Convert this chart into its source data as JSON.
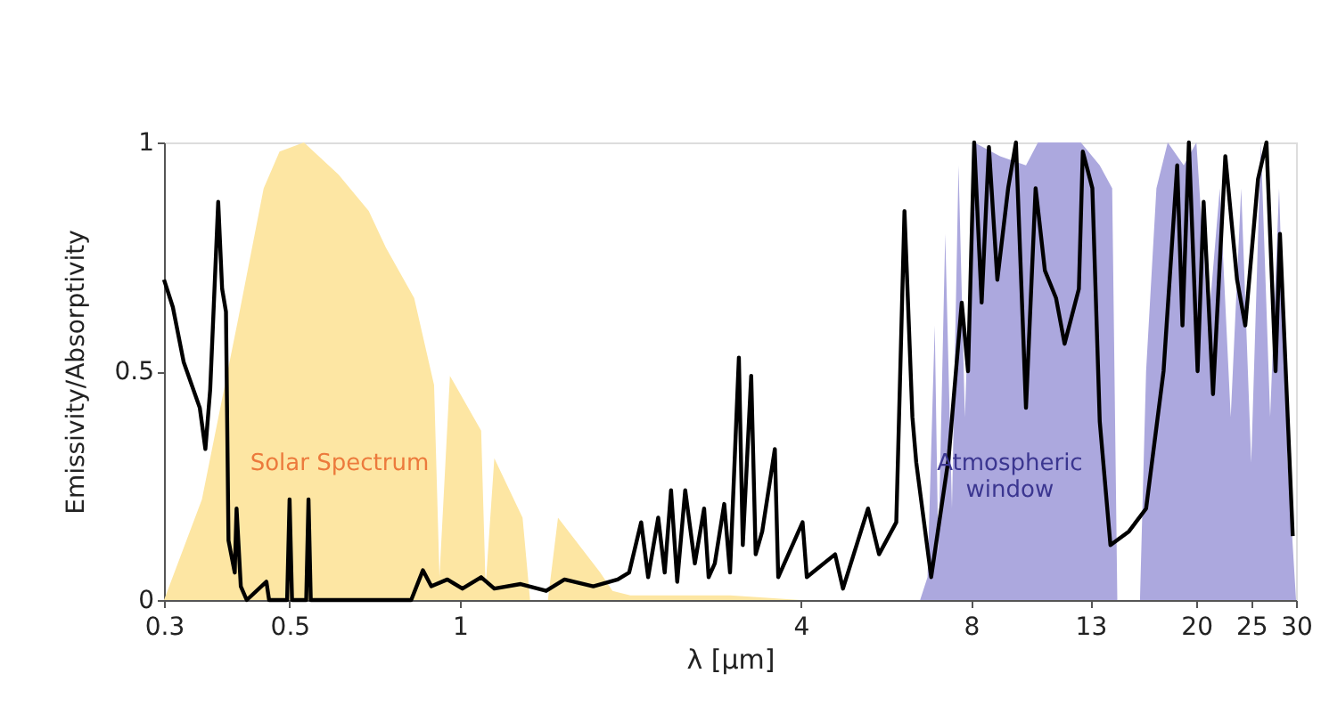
{
  "chart_data": {
    "type": "line",
    "xlabel": "λ [μm]",
    "ylabel": "Emissivity/Absorptivity",
    "log": "x",
    "xlim": [
      0.3,
      30
    ],
    "xticks": [
      0.3,
      0.5,
      1,
      4,
      8,
      13,
      20,
      25,
      30
    ],
    "ylim": [
      0,
      1
    ],
    "yticks": [
      0,
      0.5,
      1
    ],
    "grid": false,
    "legend": false,
    "marker": "none",
    "line_style": "solid",
    "series": [
      {
        "type": "area",
        "name": "Solar Spectrum",
        "color": "#fde6a3",
        "x": [
          0.3,
          0.35,
          0.405,
          0.45,
          0.48,
          0.53,
          0.61,
          0.69,
          0.74,
          0.83,
          0.9,
          0.92,
          0.96,
          1.09,
          1.11,
          1.15,
          1.29,
          1.33,
          1.43,
          1.49,
          1.77,
          1.86,
          2.0,
          3.0,
          4.0
        ],
        "values": [
          0,
          0.22,
          0.61,
          0.9,
          0.98,
          1.0,
          0.93,
          0.85,
          0.77,
          0.66,
          0.47,
          0.05,
          0.49,
          0.37,
          0.03,
          0.31,
          0.18,
          0,
          0,
          0.18,
          0.06,
          0.02,
          0.01,
          0.01,
          0
        ]
      },
      {
        "type": "area",
        "name": "Atmospheric\nwindow",
        "color": "#aca8de",
        "x": [
          6.5,
          6.7,
          6.9,
          7.0,
          7.2,
          7.4,
          7.6,
          7.8,
          8.1,
          9,
          10,
          10.5,
          12.5,
          13.5,
          14.2,
          14.5,
          15.9,
          16.3,
          17,
          17.8,
          19,
          20,
          21,
          22,
          23,
          24,
          25,
          26,
          27,
          28,
          29,
          30
        ],
        "values": [
          0,
          0.05,
          0.6,
          0.1,
          0.8,
          0.2,
          0.95,
          0.4,
          1.0,
          0.97,
          0.95,
          1.0,
          1.0,
          0.95,
          0.9,
          0,
          0,
          0.5,
          0.9,
          1.0,
          0.95,
          1.0,
          0.6,
          0.9,
          0.4,
          0.9,
          0.3,
          1.0,
          0.4,
          0.9,
          0.3,
          0
        ]
      },
      {
        "color": "#000000",
        "x": [
          0.3,
          0.311,
          0.325,
          0.347,
          0.355,
          0.362,
          0.374,
          0.38,
          0.386,
          0.39,
          0.4,
          0.403,
          0.41,
          0.42,
          0.455,
          0.46,
          0.495,
          0.5,
          0.505,
          0.535,
          0.54,
          0.545,
          0.82,
          0.86,
          0.89,
          0.95,
          1.01,
          1.09,
          1.15,
          1.28,
          1.42,
          1.53,
          1.72,
          1.9,
          1.99,
          2.09,
          2.15,
          2.24,
          2.3,
          2.36,
          2.42,
          2.5,
          2.6,
          2.7,
          2.75,
          2.82,
          2.93,
          3.0,
          3.11,
          3.16,
          3.27,
          3.33,
          3.42,
          3.6,
          3.65,
          4.03,
          4.1,
          4.6,
          4.75,
          5.26,
          5.5,
          5.9,
          6.1,
          6.3,
          6.4,
          6.8,
          7.3,
          7.7,
          7.9,
          8.1,
          8.35,
          8.6,
          8.9,
          9.3,
          9.6,
          10.0,
          10.4,
          10.8,
          11.3,
          11.7,
          12.4,
          12.6,
          13.1,
          13.5,
          14.1,
          15.2,
          16.3,
          17.5,
          18.5,
          18.9,
          19.4,
          20.1,
          20.6,
          21.4,
          22.5,
          23.6,
          24.4,
          25.7,
          26.6,
          27.6,
          28.1,
          29.0,
          29.6
        ],
        "values": [
          0.7,
          0.64,
          0.52,
          0.42,
          0.33,
          0.46,
          0.87,
          0.68,
          0.63,
          0.13,
          0.06,
          0.2,
          0.03,
          0.0,
          0.04,
          0.0,
          0.0,
          0.22,
          0.0,
          0.0,
          0.22,
          0.0,
          0.0,
          0.065,
          0.03,
          0.045,
          0.025,
          0.05,
          0.025,
          0.035,
          0.02,
          0.045,
          0.03,
          0.045,
          0.06,
          0.17,
          0.05,
          0.18,
          0.06,
          0.24,
          0.04,
          0.24,
          0.08,
          0.2,
          0.05,
          0.08,
          0.21,
          0.06,
          0.53,
          0.12,
          0.49,
          0.1,
          0.15,
          0.33,
          0.05,
          0.17,
          0.05,
          0.1,
          0.025,
          0.2,
          0.1,
          0.17,
          0.85,
          0.4,
          0.3,
          0.05,
          0.31,
          0.65,
          0.5,
          1.0,
          0.65,
          0.99,
          0.7,
          0.9,
          1.0,
          0.42,
          0.9,
          0.72,
          0.66,
          0.56,
          0.68,
          0.98,
          0.9,
          0.39,
          0.12,
          0.15,
          0.2,
          0.5,
          0.95,
          0.6,
          1.0,
          0.5,
          0.87,
          0.45,
          0.97,
          0.7,
          0.6,
          0.92,
          1.0,
          0.5,
          0.8,
          0.4,
          0.14
        ]
      }
    ]
  }
}
